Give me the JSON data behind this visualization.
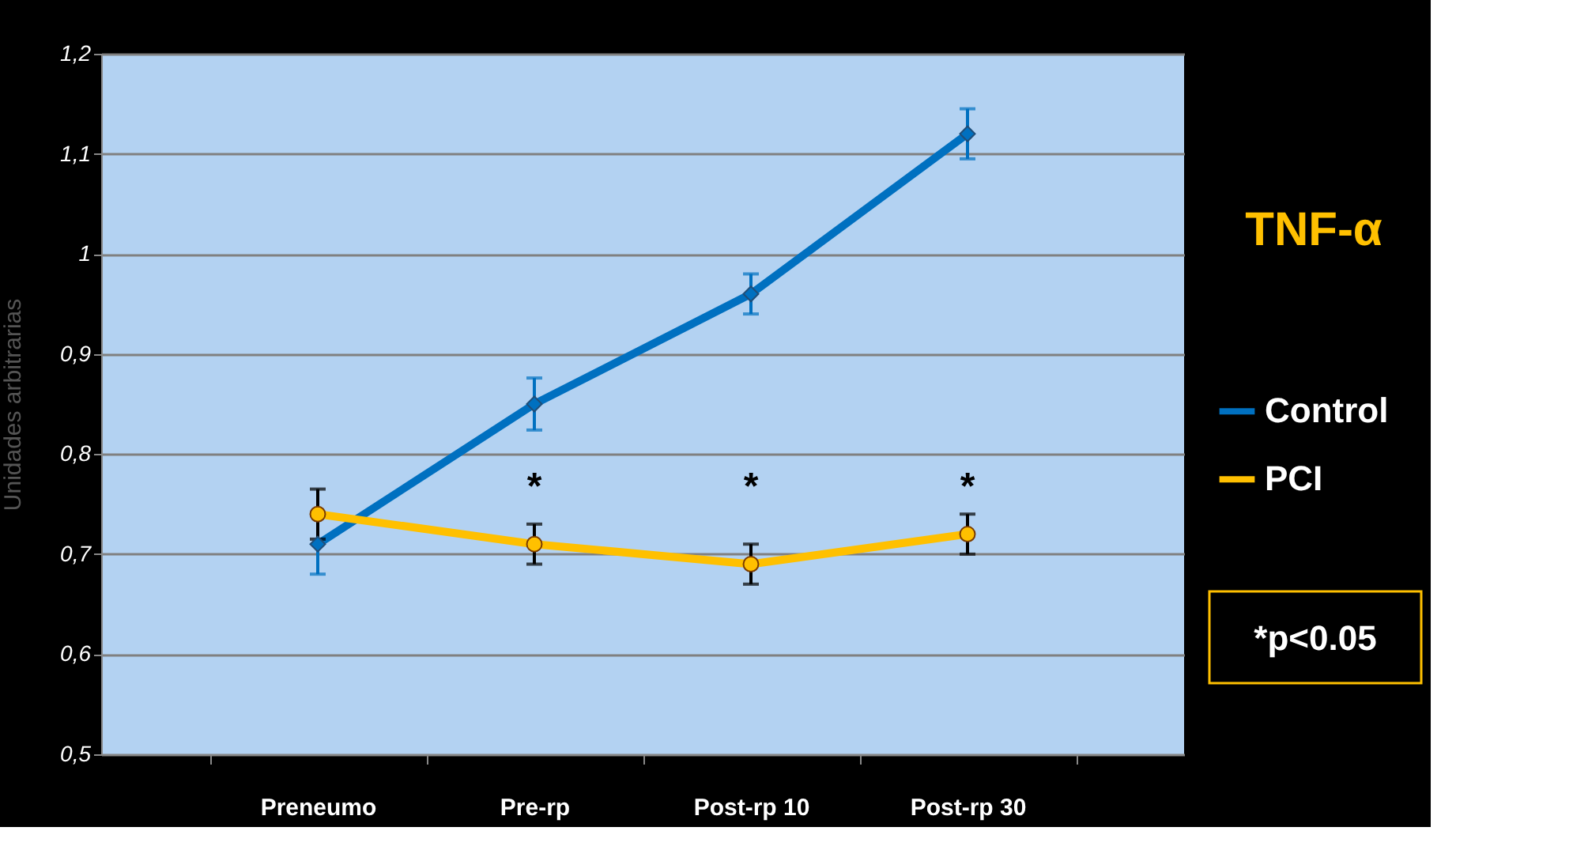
{
  "chart_data": {
    "type": "line",
    "ylabel": "Unidades arbitrarias",
    "categories": [
      "Preneumo",
      "Pre-rp",
      "Post-rp 10",
      "Post-rp 30"
    ],
    "series": [
      {
        "name": "Control",
        "color": "#0070c0",
        "marker": "diamond",
        "values": [
          0.71,
          0.85,
          0.96,
          1.12
        ],
        "errors": [
          0.03,
          0.026,
          0.02,
          0.025
        ]
      },
      {
        "name": "PCI",
        "color": "#ffc000",
        "marker": "circle",
        "values": [
          0.74,
          0.71,
          0.69,
          0.72
        ],
        "errors": [
          0.025,
          0.02,
          0.02,
          0.02
        ]
      }
    ],
    "ylim": [
      0.5,
      1.2
    ],
    "yticks": [
      {
        "value": 0.5,
        "label": "0,5"
      },
      {
        "value": 0.6,
        "label": "0,6"
      },
      {
        "value": 0.7,
        "label": "0,7"
      },
      {
        "value": 0.8,
        "label": "0,8"
      },
      {
        "value": 0.9,
        "label": "0,9"
      },
      1,
      {
        "value": 1.1,
        "label": "1,1"
      },
      {
        "value": 1.2,
        "label": "1,2"
      }
    ],
    "grid": "y",
    "legend": "right",
    "annotations": [
      "*",
      "*",
      "*",
      "TNF-α",
      "*p<0.05"
    ]
  }
}
